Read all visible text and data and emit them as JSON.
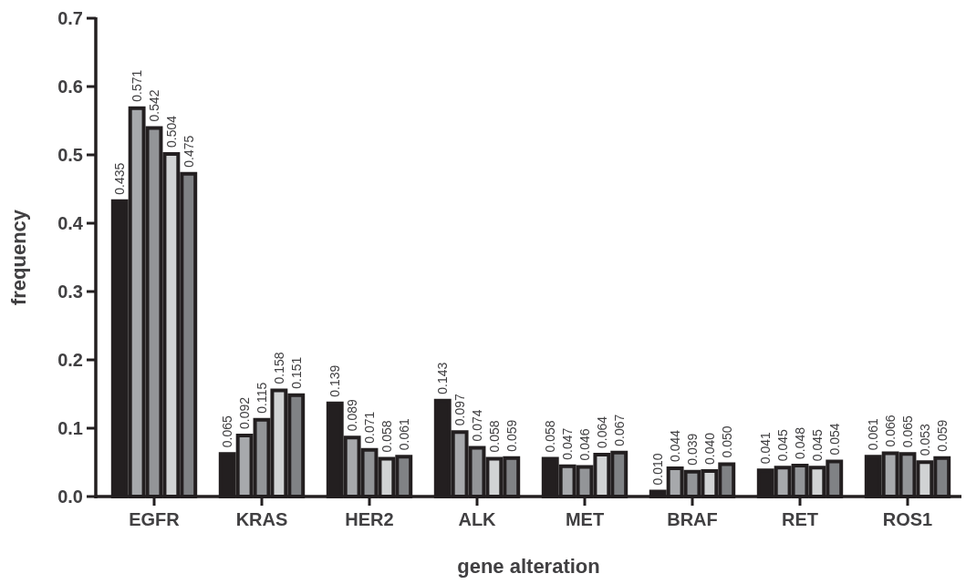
{
  "chart_data": {
    "type": "bar",
    "xlabel": "gene alteration",
    "ylabel": "frequency",
    "categories": [
      "EGFR",
      "KRAS",
      "HER2",
      "ALK",
      "MET",
      "BRAF",
      "RET",
      "ROS1"
    ],
    "series": [
      {
        "color": "#231f20",
        "values": [
          0.435,
          0.065,
          0.139,
          0.143,
          0.058,
          0.01,
          0.041,
          0.061
        ],
        "value_labels": [
          "0.435",
          "0.065",
          "0.139",
          "0.143",
          "0.058",
          "0.010",
          "0.041",
          "0.061"
        ]
      },
      {
        "color": "#a7a9ac",
        "values": [
          0.571,
          0.092,
          0.089,
          0.097,
          0.047,
          0.044,
          0.045,
          0.066
        ],
        "value_labels": [
          "0.571",
          "0.092",
          "0.089",
          "0.097",
          "0.047",
          "0.044",
          "0.045",
          "0.066"
        ]
      },
      {
        "color": "#939598",
        "values": [
          0.542,
          0.115,
          0.071,
          0.074,
          0.046,
          0.039,
          0.048,
          0.065
        ],
        "value_labels": [
          "0.542",
          "0.115",
          "0.071",
          "0.074",
          "0.046",
          "0.039",
          "0.048",
          "0.065"
        ]
      },
      {
        "color": "#d1d3d4",
        "values": [
          0.504,
          0.158,
          0.058,
          0.058,
          0.064,
          0.04,
          0.045,
          0.053
        ],
        "value_labels": [
          "0.504",
          "0.158",
          "0.058",
          "0.058",
          "0.064",
          "0.040",
          "0.045",
          "0.053"
        ]
      },
      {
        "color": "#808285",
        "values": [
          0.475,
          0.151,
          0.061,
          0.059,
          0.067,
          0.05,
          0.054,
          0.059
        ],
        "value_labels": [
          "0.475",
          "0.151",
          "0.061",
          "0.059",
          "0.067",
          "0.050",
          "0.054",
          "0.059"
        ]
      }
    ],
    "ylim": [
      0,
      0.7
    ],
    "yticks": [
      {
        "value": 0,
        "label": "0.0"
      },
      {
        "value": 0.1,
        "label": "0.1"
      },
      {
        "value": 0.2,
        "label": "0.2"
      },
      {
        "value": 0.3,
        "label": "0.3"
      },
      {
        "value": 0.4,
        "label": "0.4"
      },
      {
        "value": 0.5,
        "label": "0.5"
      },
      {
        "value": 0.6,
        "label": "0.6"
      },
      {
        "value": 0.7,
        "label": "0.7"
      }
    ],
    "grid": false
  }
}
